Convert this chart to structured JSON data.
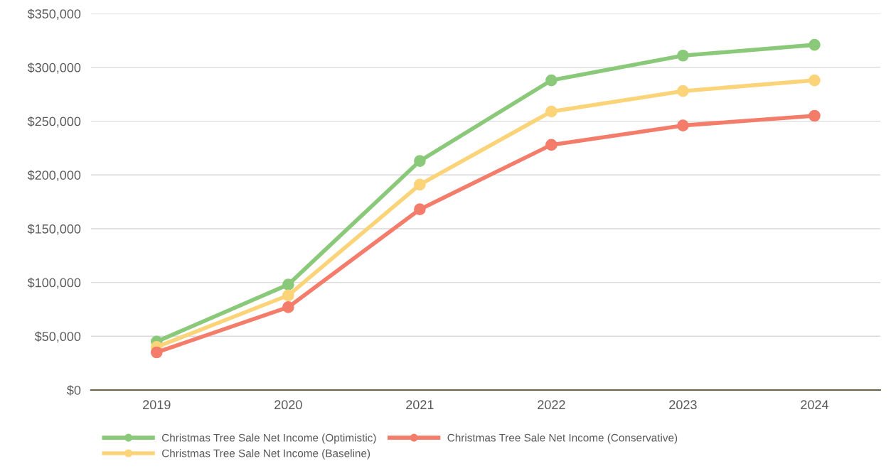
{
  "chart_data": {
    "type": "line",
    "categories": [
      "2019",
      "2020",
      "2021",
      "2022",
      "2023",
      "2024"
    ],
    "series": [
      {
        "name": "Christmas Tree Sale Net Income (Optimistic)",
        "color": "#8bc97a",
        "values": [
          45000,
          98000,
          213000,
          288000,
          311000,
          321000
        ]
      },
      {
        "name": "Christmas Tree Sale Net Income (Baseline)",
        "color": "#fbd47a",
        "values": [
          40000,
          88000,
          191000,
          259000,
          278000,
          288000
        ]
      },
      {
        "name": "Christmas Tree Sale Net Income (Conservative)",
        "color": "#f47c6b",
        "values": [
          35000,
          77000,
          168000,
          228000,
          246000,
          255000
        ]
      }
    ],
    "ylim": [
      0,
      350000
    ],
    "yticks": [
      {
        "value": 0,
        "label": "$0"
      },
      {
        "value": 50000,
        "label": "$50,000"
      },
      {
        "value": 100000,
        "label": "$100,000"
      },
      {
        "value": 150000,
        "label": "$150,000"
      },
      {
        "value": 200000,
        "label": "$200,000"
      },
      {
        "value": 250000,
        "label": "$250,000"
      },
      {
        "value": 300000,
        "label": "$300,000"
      },
      {
        "value": 350000,
        "label": "$350,000"
      }
    ],
    "grid": "y",
    "legend": "bottom",
    "marker": "circle",
    "line_style": "solid"
  }
}
